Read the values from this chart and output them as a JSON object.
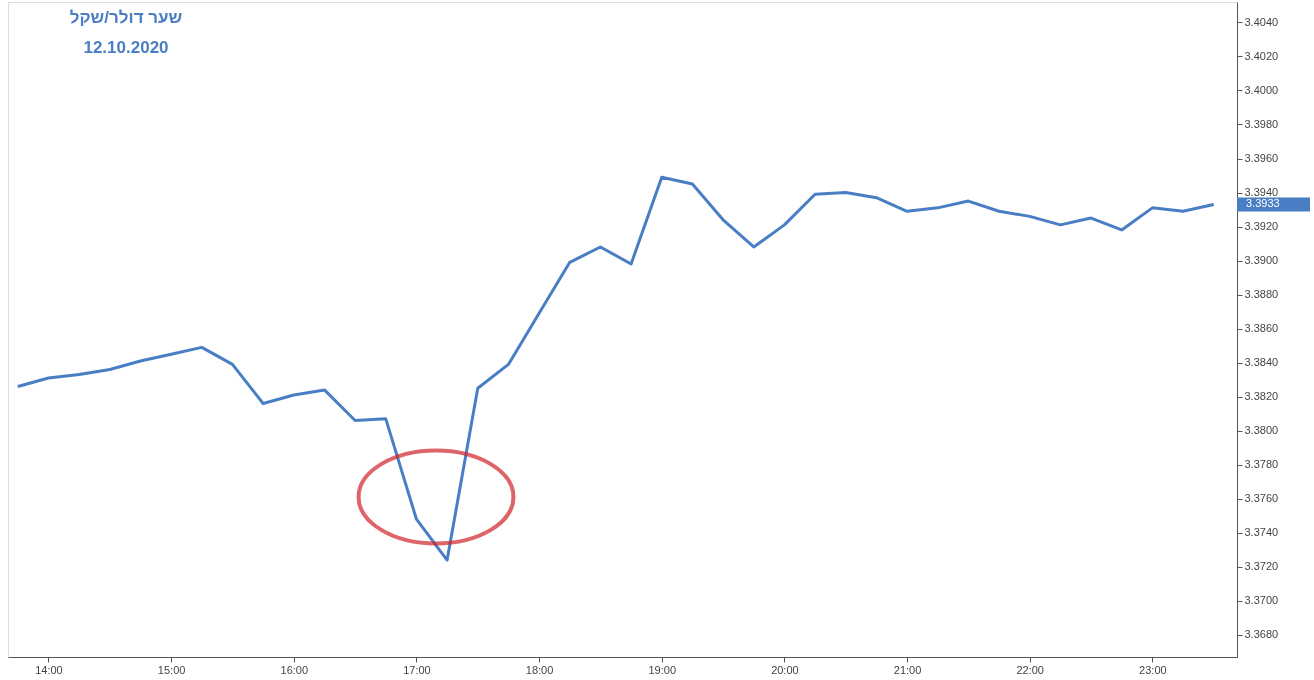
{
  "chart_data": {
    "type": "line",
    "title": "שער דולר/שקל",
    "subtitle": "12.10.2020",
    "x": [
      13.75,
      14.0,
      14.25,
      14.5,
      14.75,
      15.0,
      15.25,
      15.5,
      15.75,
      16.0,
      16.25,
      16.5,
      16.75,
      17.0,
      17.25,
      17.5,
      17.75,
      18.0,
      18.25,
      18.5,
      18.75,
      19.0,
      19.25,
      19.5,
      19.75,
      20.0,
      20.25,
      20.5,
      20.75,
      21.0,
      21.25,
      21.5,
      21.75,
      22.0,
      22.25,
      22.5,
      22.75,
      23.0,
      23.25,
      23.5
    ],
    "series": [
      {
        "color": "#4a7ec4",
        "values": [
          3.3826,
          3.3831,
          3.3833,
          3.3836,
          3.3841,
          3.3845,
          3.3849,
          3.3839,
          3.3816,
          3.3821,
          3.3824,
          3.3806,
          3.3807,
          3.3748,
          3.3724,
          3.3825,
          3.3839,
          3.3869,
          3.3899,
          3.3908,
          3.3898,
          3.3949,
          3.3945,
          3.3924,
          3.3908,
          3.3921,
          3.3939,
          3.394,
          3.3937,
          3.3929,
          3.3931,
          3.3935,
          3.3929,
          3.3926,
          3.3921,
          3.3925,
          3.3918,
          3.3931,
          3.3929,
          3.3933
        ]
      }
    ],
    "xlim": [
      13.67,
      23.69
    ],
    "xticks": [
      {
        "value": 14,
        "label": "14:00"
      },
      {
        "value": 15,
        "label": "15:00"
      },
      {
        "value": 16,
        "label": "16:00"
      },
      {
        "value": 17,
        "label": "17:00"
      },
      {
        "value": 18,
        "label": "18:00"
      },
      {
        "value": 19,
        "label": "19:00"
      },
      {
        "value": 20,
        "label": "20:00"
      },
      {
        "value": 21,
        "label": "21:00"
      },
      {
        "value": 22,
        "label": "22:00"
      },
      {
        "value": 23,
        "label": "23:00"
      }
    ],
    "ylim": [
      3.3667,
      3.4052
    ],
    "yticks": [
      {
        "value": 3.368,
        "label": "3.3680"
      },
      {
        "value": 3.37,
        "label": "3.3700"
      },
      {
        "value": 3.372,
        "label": "3.3720"
      },
      {
        "value": 3.374,
        "label": "3.3740"
      },
      {
        "value": 3.376,
        "label": "3.3760"
      },
      {
        "value": 3.378,
        "label": "3.3780"
      },
      {
        "value": 3.38,
        "label": "3.3800"
      },
      {
        "value": 3.382,
        "label": "3.3820"
      },
      {
        "value": 3.384,
        "label": "3.3840"
      },
      {
        "value": 3.386,
        "label": "3.3860"
      },
      {
        "value": 3.388,
        "label": "3.3880"
      },
      {
        "value": 3.39,
        "label": "3.3900"
      },
      {
        "value": 3.392,
        "label": "3.3920"
      },
      {
        "value": 3.394,
        "label": "3.3940"
      },
      {
        "value": 3.396,
        "label": "3.3960"
      },
      {
        "value": 3.398,
        "label": "3.3980"
      },
      {
        "value": 3.4,
        "label": "3.4000"
      },
      {
        "value": 3.402,
        "label": "3.4020"
      },
      {
        "value": 3.404,
        "label": "3.4040"
      }
    ],
    "annotations": [
      "3.3933"
    ],
    "grid": false,
    "marker": "none",
    "line_style": "solid"
  }
}
